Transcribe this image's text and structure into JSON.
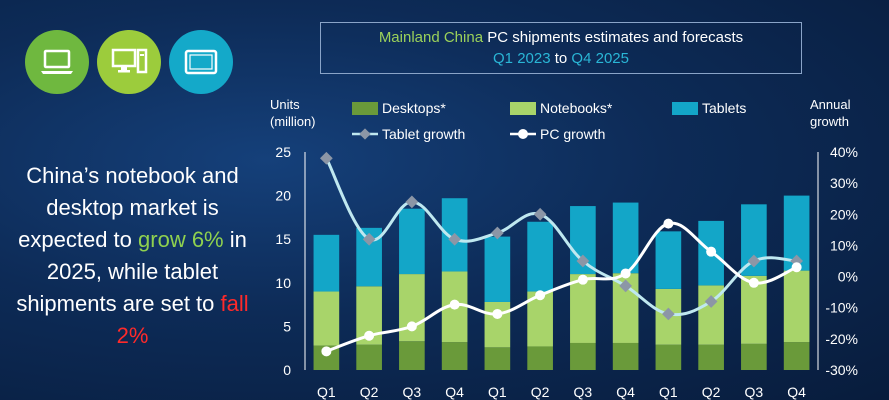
{
  "icons": [
    {
      "name": "laptop-icon",
      "color": "#6fb83f"
    },
    {
      "name": "desktop-icon",
      "color": "#9ccc3c"
    },
    {
      "name": "tablet-icon",
      "color": "#14a9c9"
    }
  ],
  "headline": {
    "part1": "China’s notebook and desktop market is expected to",
    "part2": "grow 6%",
    "part3": "in 2025, while tablet shipments are set to",
    "part4": "fall 2%"
  },
  "title": {
    "line1_a": "Mainland China",
    "line1_b": "PC shipments estimates and forecasts",
    "line2_a": "Q1 2023",
    "line2_b": "to",
    "line2_c": "Q4 2025"
  },
  "axis": {
    "y_left_title_1": "Units",
    "y_left_title_2": "(million)",
    "y_right_title_1": "Annual",
    "y_right_title_2": "growth"
  },
  "colors": {
    "desktops": "#6a9a3a",
    "notebooks": "#a8d46a",
    "tablets": "#13a6c8",
    "tablet_growth_line": "#bfe8f0",
    "pc_growth_line": "#ffffff"
  },
  "chart_data": {
    "type": "bar",
    "stacked": true,
    "categories": [
      "Q1",
      "Q2",
      "Q3",
      "Q4",
      "Q1",
      "Q2",
      "Q3",
      "Q4",
      "Q1",
      "Q2",
      "Q3",
      "Q4"
    ],
    "series": [
      {
        "name": "Desktops*",
        "values": [
          2.8,
          2.9,
          3.3,
          3.2,
          2.6,
          2.7,
          3.1,
          3.1,
          2.9,
          2.9,
          3.0,
          3.2
        ]
      },
      {
        "name": "Notebooks*",
        "values": [
          6.2,
          6.7,
          7.7,
          8.1,
          5.2,
          6.3,
          7.9,
          8.0,
          6.4,
          6.8,
          7.8,
          8.2
        ]
      },
      {
        "name": "Tablets",
        "values": [
          6.5,
          6.7,
          7.5,
          8.4,
          7.5,
          8.0,
          7.8,
          8.1,
          6.6,
          7.4,
          8.2,
          8.6
        ]
      }
    ],
    "lines": [
      {
        "name": "Tablet growth",
        "axis": "right",
        "values": [
          38,
          12,
          24,
          12,
          14,
          20,
          5,
          -3,
          -12,
          -8,
          5,
          5
        ]
      },
      {
        "name": "PC growth",
        "axis": "right",
        "values": [
          -24,
          -19,
          -16,
          -9,
          -12,
          -6,
          -1,
          1,
          17,
          8,
          -2,
          3
        ]
      }
    ],
    "ylim": [
      0,
      25
    ],
    "yticks": [
      "0",
      "5",
      "10",
      "15",
      "20",
      "25"
    ],
    "y2lim": [
      -30,
      40
    ],
    "y2ticks": [
      "-30%",
      "-20%",
      "-10%",
      "0%",
      "10%",
      "20%",
      "30%",
      "40%"
    ],
    "legend": "top"
  }
}
